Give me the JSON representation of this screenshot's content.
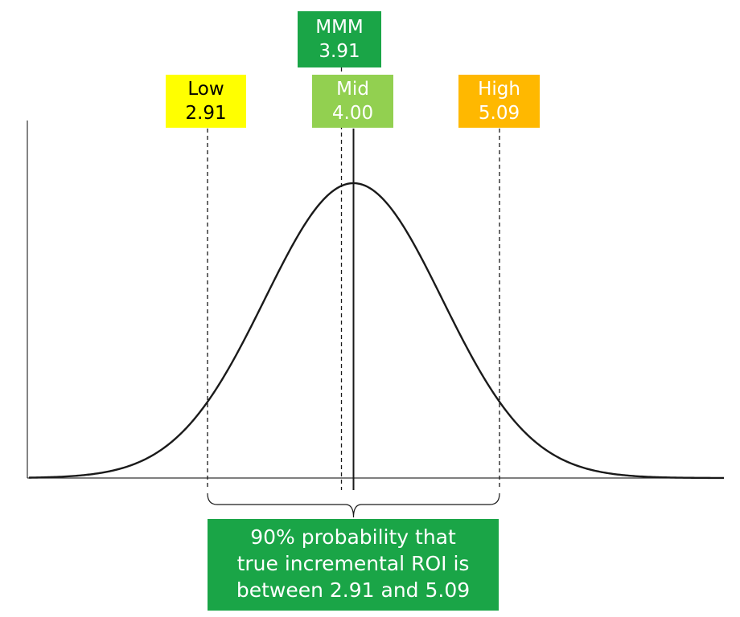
{
  "labels": {
    "mmm": {
      "name": "MMM",
      "value": "3.91",
      "x": 3.91,
      "bg": "#1aa547",
      "fg": "#ffffff"
    },
    "low": {
      "name": "Low",
      "value": "2.91",
      "x": 2.91,
      "bg": "#ffff00",
      "fg": "#000000"
    },
    "mid": {
      "name": "Mid",
      "value": "4.00",
      "x": 4.0,
      "bg": "#92d050",
      "fg": "#ffffff"
    },
    "high": {
      "name": "High",
      "value": "5.09",
      "x": 5.09,
      "bg": "#ffb800",
      "fg": "#ffffff"
    }
  },
  "distribution": {
    "mean": 4.0,
    "interval_low": 2.91,
    "interval_high": 5.09,
    "interval_probability": 0.9
  },
  "note": {
    "lines": [
      "90% probability that",
      "true incremental ROI is",
      "between 2.91 and 5.09"
    ],
    "bg": "#1aa547",
    "fg": "#ffffff"
  }
}
